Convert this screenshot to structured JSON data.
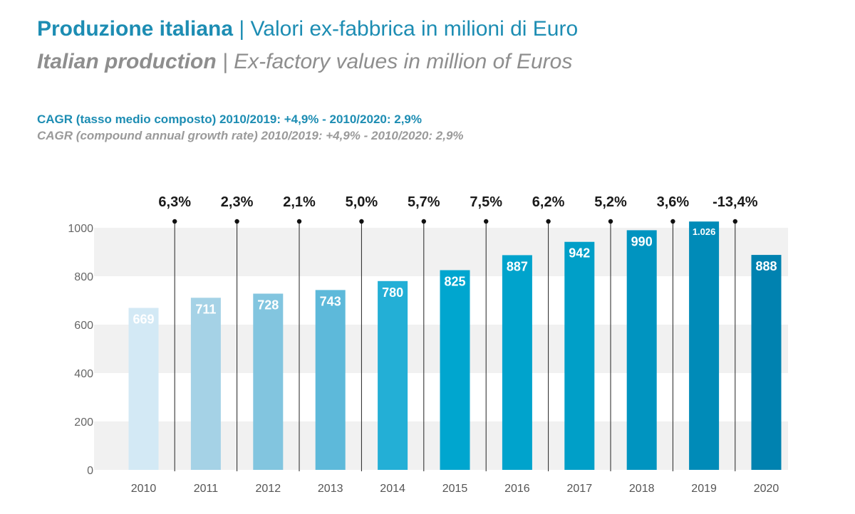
{
  "header": {
    "title_it_bold": "Produzione italiana",
    "title_it_rest": " | Valori ex-fabbrica in milioni di Euro",
    "title_en_bold": "Italian production",
    "title_en_rest": " | Ex-factory values in million of Euros",
    "cagr_it": "CAGR (tasso medio composto) 2010/2019: +4,9% - 2010/2020: 2,9%",
    "cagr_en": "CAGR (compound annual growth rate) 2010/2019: +4,9% - 2010/2020: 2,9%"
  },
  "chart_data": {
    "type": "bar",
    "categories": [
      "2010",
      "2011",
      "2012",
      "2013",
      "2014",
      "2015",
      "2016",
      "2017",
      "2018",
      "2019",
      "2020"
    ],
    "values": [
      669,
      711,
      728,
      743,
      780,
      825,
      887,
      942,
      990,
      1026,
      888
    ],
    "value_labels": [
      "669",
      "711",
      "728",
      "743",
      "780",
      "825",
      "887",
      "942",
      "990",
      "1.026",
      "888"
    ],
    "growth_labels": [
      "6,3%",
      "2,3%",
      "2,1%",
      "5,0%",
      "5,7%",
      "7,5%",
      "6,2%",
      "5,2%",
      "3,6%",
      "-13,4%"
    ],
    "yticks": [
      0,
      200,
      400,
      600,
      800,
      1000
    ],
    "ylim": [
      0,
      1000
    ],
    "grid": "alternating bands",
    "colors": [
      "#d3e9f5",
      "#a5d2e6",
      "#82c5df",
      "#5db9da",
      "#23afd6",
      "#00a6cf",
      "#00a3cc",
      "#009fc8",
      "#0094c0",
      "#008bb8",
      "#0082b0"
    ]
  }
}
